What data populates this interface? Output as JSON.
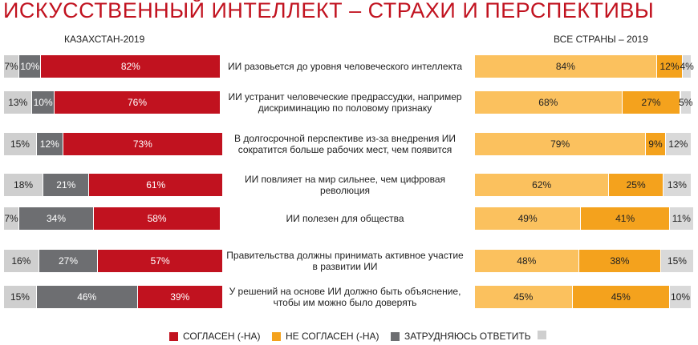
{
  "chart_data": {
    "type": "stacked-bar-pair",
    "title": "ИСКУССТВЕННЫЙ ИНТЕЛЛЕКТ – СТРАХИ И ПЕРСПЕКТИВЫ",
    "categories": [
      "ИИ разовьется до уровня человеческого интеллекта",
      "ИИ устранит человеческие предрассудки, например\nдискриминацию по половому признаку",
      "В долгосрочной перспективе из-за внедрения ИИ\nсократится больше рабочих мест, чем появится",
      "ИИ повлияет на мир сильнее, чем цифровая\nреволюция",
      "ИИ полезен для общества",
      "Правительства должны принимать активное участие\nв развитии ИИ",
      "У решений на основе ИИ должно быть объяснение,\nчтобы им можно было доверять"
    ],
    "panels": [
      {
        "label": "КАЗАХСТАН-2019",
        "xlim": [
          0,
          100
        ],
        "series": [
          {
            "color": "#cfcfcf",
            "text_color": "#222",
            "values": [
              7,
              13,
              15,
              18,
              7,
              16,
              15
            ],
            "value_labels": [
              "7%",
              "13%",
              "15%",
              "18%",
              "7%",
              "16%",
              "15%"
            ]
          },
          {
            "color": "#6d6e71",
            "text_color": "#fff",
            "values": [
              10,
              10,
              12,
              21,
              34,
              27,
              46
            ],
            "value_labels": [
              "10%",
              "10%",
              "12%",
              "21%",
              "34%",
              "27%",
              "46%"
            ]
          },
          {
            "color": "#c1121f",
            "text_color": "#fff",
            "values": [
              82,
              76,
              73,
              61,
              58,
              57,
              39
            ],
            "value_labels": [
              "82%",
              "76%",
              "73%",
              "61%",
              "58%",
              "57%",
              "39%"
            ]
          }
        ]
      },
      {
        "label": "ВСЕ СТРАНЫ – 2019",
        "xlim": [
          0,
          100
        ],
        "series": [
          {
            "color": "#fbc15e",
            "text_color": "#222",
            "values": [
              84,
              68,
              79,
              62,
              49,
              48,
              45
            ],
            "value_labels": [
              "84%",
              "68%",
              "79%",
              "62%",
              "49%",
              "48%",
              "45%"
            ]
          },
          {
            "color": "#f4a21d",
            "text_color": "#222",
            "values": [
              12,
              27,
              9,
              25,
              41,
              38,
              45
            ],
            "value_labels": [
              "12%",
              "27%",
              "9%",
              "25%",
              "41%",
              "38%",
              "45%"
            ]
          },
          {
            "color": "#d9d9d9",
            "text_color": "#222",
            "values": [
              4,
              5,
              12,
              13,
              11,
              15,
              10
            ],
            "value_labels": [
              "4%",
              "5%",
              "12%",
              "13%",
              "11%",
              "15%",
              "10%"
            ]
          }
        ]
      }
    ],
    "legend": [
      {
        "label": "СОГЛАСЕН (-НА)",
        "color": "#c1121f"
      },
      {
        "label": "НЕ СОГЛАСЕН (-НА)",
        "color": "#f4a21d"
      },
      {
        "label": "ЗАТРУДНЯЮСЬ ОТВЕТИТЬ",
        "color": "#6d6e71"
      }
    ],
    "legend_end_color": "#cfcfcf"
  }
}
